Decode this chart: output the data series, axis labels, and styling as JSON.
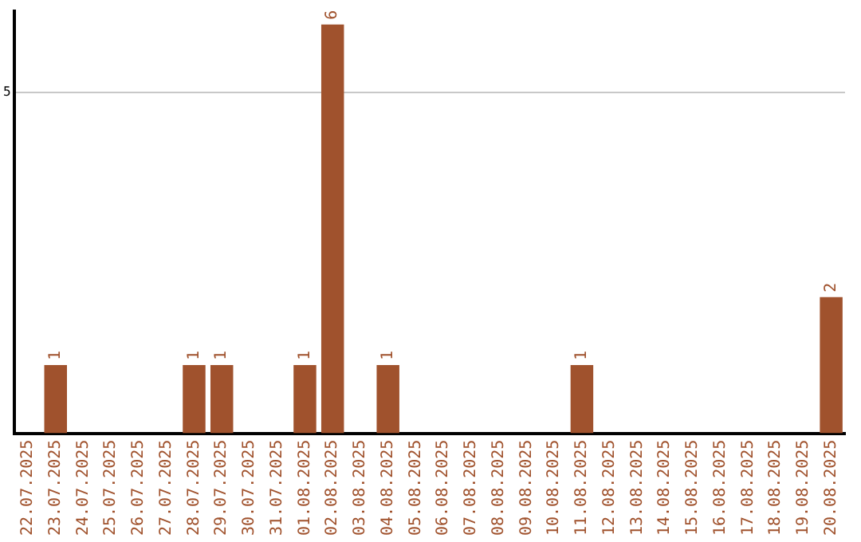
{
  "chart_data": {
    "type": "bar",
    "categories": [
      "22.07.2025",
      "23.07.2025",
      "24.07.2025",
      "25.07.2025",
      "26.07.2025",
      "27.07.2025",
      "28.07.2025",
      "29.07.2025",
      "30.07.2025",
      "31.07.2025",
      "01.08.2025",
      "02.08.2025",
      "03.08.2025",
      "04.08.2025",
      "05.08.2025",
      "06.08.2025",
      "07.08.2025",
      "08.08.2025",
      "09.08.2025",
      "10.08.2025",
      "11.08.2025",
      "12.08.2025",
      "13.08.2025",
      "14.08.2025",
      "15.08.2025",
      "16.08.2025",
      "17.08.2025",
      "18.08.2025",
      "19.08.2025",
      "20.08.2025"
    ],
    "values": [
      0,
      1,
      0,
      0,
      0,
      0,
      1,
      1,
      0,
      0,
      1,
      6,
      0,
      1,
      0,
      0,
      0,
      0,
      0,
      0,
      1,
      0,
      0,
      0,
      0,
      0,
      0,
      0,
      0,
      2
    ],
    "value_labels": [
      null,
      "1",
      null,
      null,
      null,
      null,
      "1",
      "1",
      null,
      null,
      "1",
      "6",
      null,
      "1",
      null,
      null,
      null,
      null,
      null,
      null,
      "1",
      null,
      null,
      null,
      null,
      null,
      null,
      null,
      null,
      "2"
    ],
    "color": "#a0522d",
    "ylim": [
      0,
      6.2
    ],
    "yticks": [
      5
    ],
    "grid": "y",
    "legend": false
  }
}
